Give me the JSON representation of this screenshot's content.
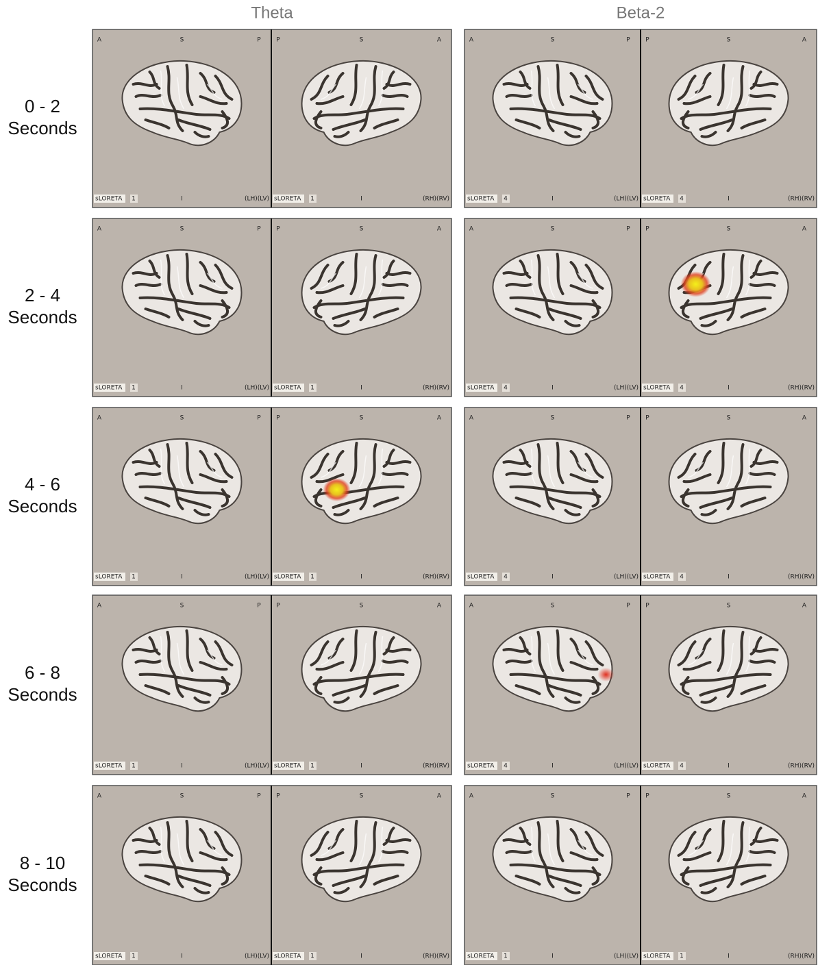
{
  "column_titles": [
    "Theta",
    "Beta-2"
  ],
  "rows": [
    {
      "time": "0 - 2",
      "unit": "Seconds",
      "panels": [
        {
          "views": [
            {
              "orientation": [
                "A",
                "S",
                "P"
              ],
              "inferior": "I",
              "method": "sLORETA",
              "level": 1,
              "hemisphere": "(LH)(LV)"
            },
            {
              "orientation": [
                "P",
                "S",
                "A"
              ],
              "inferior": "I",
              "method": "sLORETA",
              "level": 1,
              "hemisphere": "(RH)(RV)"
            }
          ]
        },
        {
          "views": [
            {
              "orientation": [
                "A",
                "S",
                "P"
              ],
              "inferior": "I",
              "method": "sLORETA",
              "level": 4,
              "hemisphere": "(LH)(LV)"
            },
            {
              "orientation": [
                "P",
                "S",
                "A"
              ],
              "inferior": "I",
              "method": "sLORETA",
              "level": 4,
              "hemisphere": "(RH)(RV)"
            }
          ]
        }
      ]
    },
    {
      "time": "2 - 4",
      "unit": "Seconds",
      "panels": [
        {
          "views": [
            {
              "orientation": [
                "A",
                "S",
                "P"
              ],
              "inferior": "I",
              "method": "sLORETA",
              "level": 1,
              "hemisphere": "(LH)(LV)"
            },
            {
              "orientation": [
                "P",
                "S",
                "A"
              ],
              "inferior": "I",
              "method": "sLORETA",
              "level": 1,
              "hemisphere": "(RH)(RV)"
            }
          ]
        },
        {
          "views": [
            {
              "orientation": [
                "A",
                "S",
                "P"
              ],
              "inferior": "I",
              "method": "sLORETA",
              "level": 4,
              "hemisphere": "(LH)(LV)"
            },
            {
              "orientation": [
                "P",
                "S",
                "A"
              ],
              "inferior": "I",
              "method": "sLORETA",
              "level": 4,
              "hemisphere": "(RH)(RV)"
            }
          ]
        }
      ]
    },
    {
      "time": "4 - 6",
      "unit": "Seconds",
      "panels": [
        {
          "views": [
            {
              "orientation": [
                "A",
                "S",
                "P"
              ],
              "inferior": "I",
              "method": "sLORETA",
              "level": 1,
              "hemisphere": "(LH)(LV)"
            },
            {
              "orientation": [
                "P",
                "S",
                "A"
              ],
              "inferior": "I",
              "method": "sLORETA",
              "level": 1,
              "hemisphere": "(RH)(RV)"
            }
          ]
        },
        {
          "views": [
            {
              "orientation": [
                "A",
                "S",
                "P"
              ],
              "inferior": "I",
              "method": "sLORETA",
              "level": 4,
              "hemisphere": "(LH)(LV)"
            },
            {
              "orientation": [
                "P",
                "S",
                "A"
              ],
              "inferior": "I",
              "method": "sLORETA",
              "level": 4,
              "hemisphere": "(RH)(RV)"
            }
          ]
        }
      ]
    },
    {
      "time": "6 - 8",
      "unit": "Seconds",
      "panels": [
        {
          "views": [
            {
              "orientation": [
                "A",
                "S",
                "P"
              ],
              "inferior": "I",
              "method": "sLORETA",
              "level": 1,
              "hemisphere": "(LH)(LV)"
            },
            {
              "orientation": [
                "P",
                "S",
                "A"
              ],
              "inferior": "I",
              "method": "sLORETA",
              "level": 1,
              "hemisphere": "(RH)(RV)"
            }
          ]
        },
        {
          "views": [
            {
              "orientation": [
                "A",
                "S",
                "P"
              ],
              "inferior": "I",
              "method": "sLORETA",
              "level": 4,
              "hemisphere": "(LH)(LV)"
            },
            {
              "orientation": [
                "P",
                "S",
                "A"
              ],
              "inferior": "I",
              "method": "sLORETA",
              "level": 4,
              "hemisphere": "(RH)(RV)"
            }
          ]
        }
      ]
    },
    {
      "time": "8 - 10",
      "unit": "Seconds",
      "panels": [
        {
          "views": [
            {
              "orientation": [
                "A",
                "S",
                "P"
              ],
              "inferior": "I",
              "method": "sLORETA",
              "level": 1,
              "hemisphere": "(LH)(LV)"
            },
            {
              "orientation": [
                "P",
                "S",
                "A"
              ],
              "inferior": "I",
              "method": "sLORETA",
              "level": 1,
              "hemisphere": "(RH)(RV)"
            }
          ]
        },
        {
          "views": [
            {
              "orientation": [
                "A",
                "S",
                "P"
              ],
              "inferior": "I",
              "method": "sLORETA",
              "level": 1,
              "hemisphere": "(LH)(LV)"
            },
            {
              "orientation": [
                "P",
                "S",
                "A"
              ],
              "inferior": "I",
              "method": "sLORETA",
              "level": 1,
              "hemisphere": "(RH)(RV)"
            }
          ]
        }
      ]
    }
  ]
}
